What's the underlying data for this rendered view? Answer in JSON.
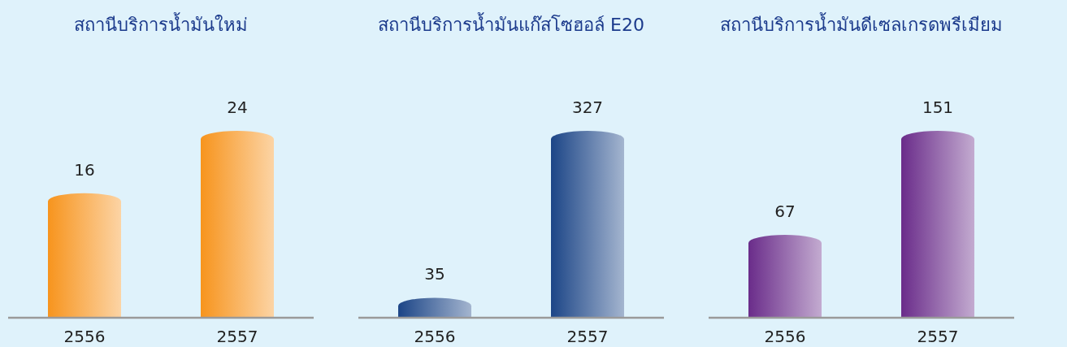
{
  "chart_data": [
    {
      "type": "bar",
      "title": "สถานีบริการน้ำมันใหม่",
      "categories": [
        "2556",
        "2557"
      ],
      "values": [
        16,
        24
      ],
      "color": "#f7941d",
      "data_labels": true
    },
    {
      "type": "bar",
      "title": "สถานีบริการน้ำมันแก๊สโซฮอล์ E20",
      "categories": [
        "2556",
        "2557"
      ],
      "values": [
        35,
        327
      ],
      "color": "#1c4587",
      "data_labels": true
    },
    {
      "type": "bar",
      "title": "สถานีบริการน้ำมันดีเซลเกรดพรีเมียม",
      "categories": [
        "2556",
        "2557"
      ],
      "values": [
        67,
        151
      ],
      "color": "#6a2c8a",
      "data_labels": true
    }
  ]
}
